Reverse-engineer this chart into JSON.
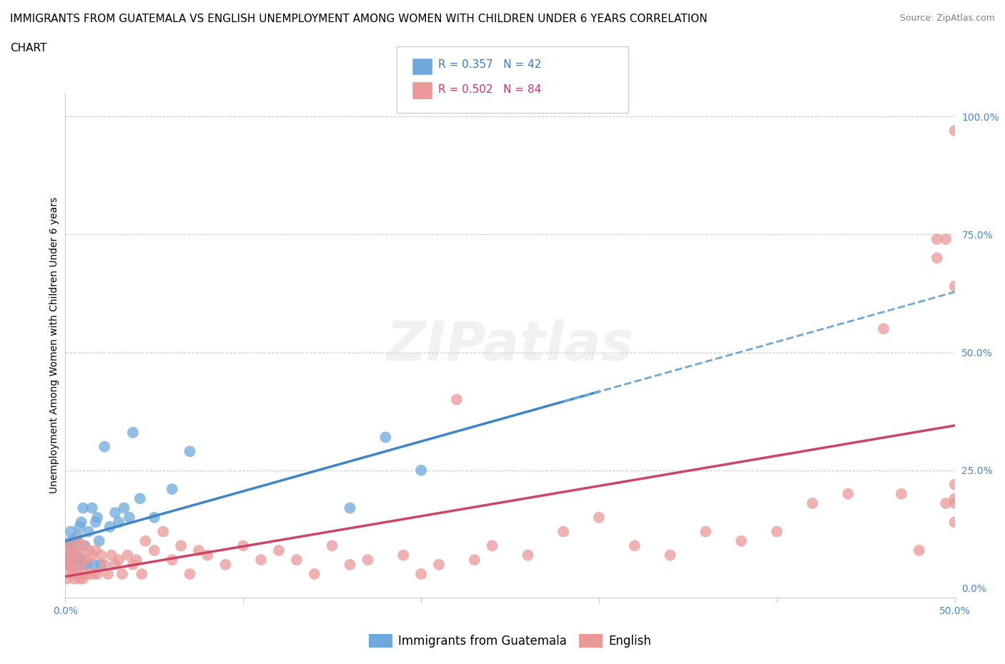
{
  "title_line1": "IMMIGRANTS FROM GUATEMALA VS ENGLISH UNEMPLOYMENT AMONG WOMEN WITH CHILDREN UNDER 6 YEARS CORRELATION",
  "title_line2": "CHART",
  "source_text": "Source: ZipAtlas.com",
  "ylabel": "Unemployment Among Women with Children Under 6 years",
  "xlim": [
    0,
    0.5
  ],
  "ylim": [
    -0.02,
    1.05
  ],
  "xtick_vals": [
    0.0,
    0.1,
    0.2,
    0.3,
    0.4,
    0.5
  ],
  "xtick_labels": [
    "0.0%",
    "",
    "",
    "",
    "",
    "50.0%"
  ],
  "ytick_vals": [
    0.0,
    0.25,
    0.5,
    0.75,
    1.0
  ],
  "ytick_labels": [
    "0.0%",
    "25.0%",
    "50.0%",
    "75.0%",
    "100.0%"
  ],
  "blue_color": "#6fa8dc",
  "pink_color": "#ea9999",
  "blue_line_color": "#3d85c8",
  "pink_line_color": "#cc4466",
  "r_blue": 0.357,
  "n_blue": 42,
  "r_pink": 0.502,
  "n_pink": 84,
  "legend_label_blue": "Immigrants from Guatemala",
  "legend_label_pink": "English",
  "watermark": "ZIPatlas",
  "blue_scatter_x": [
    0.001,
    0.002,
    0.002,
    0.003,
    0.003,
    0.003,
    0.004,
    0.004,
    0.005,
    0.005,
    0.006,
    0.007,
    0.007,
    0.008,
    0.008,
    0.009,
    0.009,
    0.01,
    0.01,
    0.011,
    0.012,
    0.013,
    0.015,
    0.016,
    0.017,
    0.018,
    0.019,
    0.02,
    0.022,
    0.025,
    0.028,
    0.03,
    0.033,
    0.036,
    0.038,
    0.042,
    0.05,
    0.06,
    0.07,
    0.16,
    0.18,
    0.2
  ],
  "blue_scatter_y": [
    0.05,
    0.06,
    0.09,
    0.07,
    0.1,
    0.12,
    0.05,
    0.08,
    0.06,
    0.1,
    0.05,
    0.07,
    0.11,
    0.05,
    0.13,
    0.06,
    0.14,
    0.05,
    0.17,
    0.09,
    0.05,
    0.12,
    0.17,
    0.05,
    0.14,
    0.15,
    0.1,
    0.05,
    0.3,
    0.13,
    0.16,
    0.14,
    0.17,
    0.15,
    0.33,
    0.19,
    0.15,
    0.21,
    0.29,
    0.17,
    0.32,
    0.25
  ],
  "pink_scatter_x": [
    0.001,
    0.001,
    0.002,
    0.002,
    0.003,
    0.003,
    0.004,
    0.004,
    0.005,
    0.005,
    0.006,
    0.006,
    0.007,
    0.007,
    0.008,
    0.008,
    0.009,
    0.01,
    0.01,
    0.011,
    0.012,
    0.013,
    0.014,
    0.015,
    0.016,
    0.017,
    0.018,
    0.02,
    0.022,
    0.024,
    0.026,
    0.028,
    0.03,
    0.032,
    0.035,
    0.038,
    0.04,
    0.043,
    0.045,
    0.05,
    0.055,
    0.06,
    0.065,
    0.07,
    0.075,
    0.08,
    0.09,
    0.1,
    0.11,
    0.12,
    0.13,
    0.14,
    0.15,
    0.16,
    0.17,
    0.19,
    0.2,
    0.21,
    0.22,
    0.23,
    0.24,
    0.26,
    0.28,
    0.3,
    0.32,
    0.34,
    0.36,
    0.38,
    0.4,
    0.42,
    0.44,
    0.46,
    0.47,
    0.48,
    0.49,
    0.49,
    0.495,
    0.495,
    0.5,
    0.5,
    0.5,
    0.5,
    0.5,
    0.5
  ],
  "pink_scatter_y": [
    0.02,
    0.06,
    0.05,
    0.09,
    0.04,
    0.08,
    0.03,
    0.07,
    0.02,
    0.06,
    0.04,
    0.08,
    0.03,
    0.1,
    0.02,
    0.07,
    0.05,
    0.02,
    0.09,
    0.03,
    0.06,
    0.08,
    0.03,
    0.07,
    0.03,
    0.08,
    0.03,
    0.07,
    0.05,
    0.03,
    0.07,
    0.05,
    0.06,
    0.03,
    0.07,
    0.05,
    0.06,
    0.03,
    0.1,
    0.08,
    0.12,
    0.06,
    0.09,
    0.03,
    0.08,
    0.07,
    0.05,
    0.09,
    0.06,
    0.08,
    0.06,
    0.03,
    0.09,
    0.05,
    0.06,
    0.07,
    0.03,
    0.05,
    0.4,
    0.06,
    0.09,
    0.07,
    0.12,
    0.15,
    0.09,
    0.07,
    0.12,
    0.1,
    0.12,
    0.18,
    0.2,
    0.55,
    0.2,
    0.08,
    0.7,
    0.74,
    0.74,
    0.18,
    0.14,
    0.18,
    0.22,
    0.97,
    0.64,
    0.19
  ],
  "title_fontsize": 11,
  "axis_label_fontsize": 10,
  "tick_fontsize": 10,
  "legend_fontsize": 11,
  "grid_color": "#cccccc",
  "blue_trend_x_end": 0.3,
  "blue_trend_intercept": 0.055,
  "blue_trend_slope": 0.7,
  "pink_trend_intercept": -0.03,
  "pink_trend_slope": 0.76
}
